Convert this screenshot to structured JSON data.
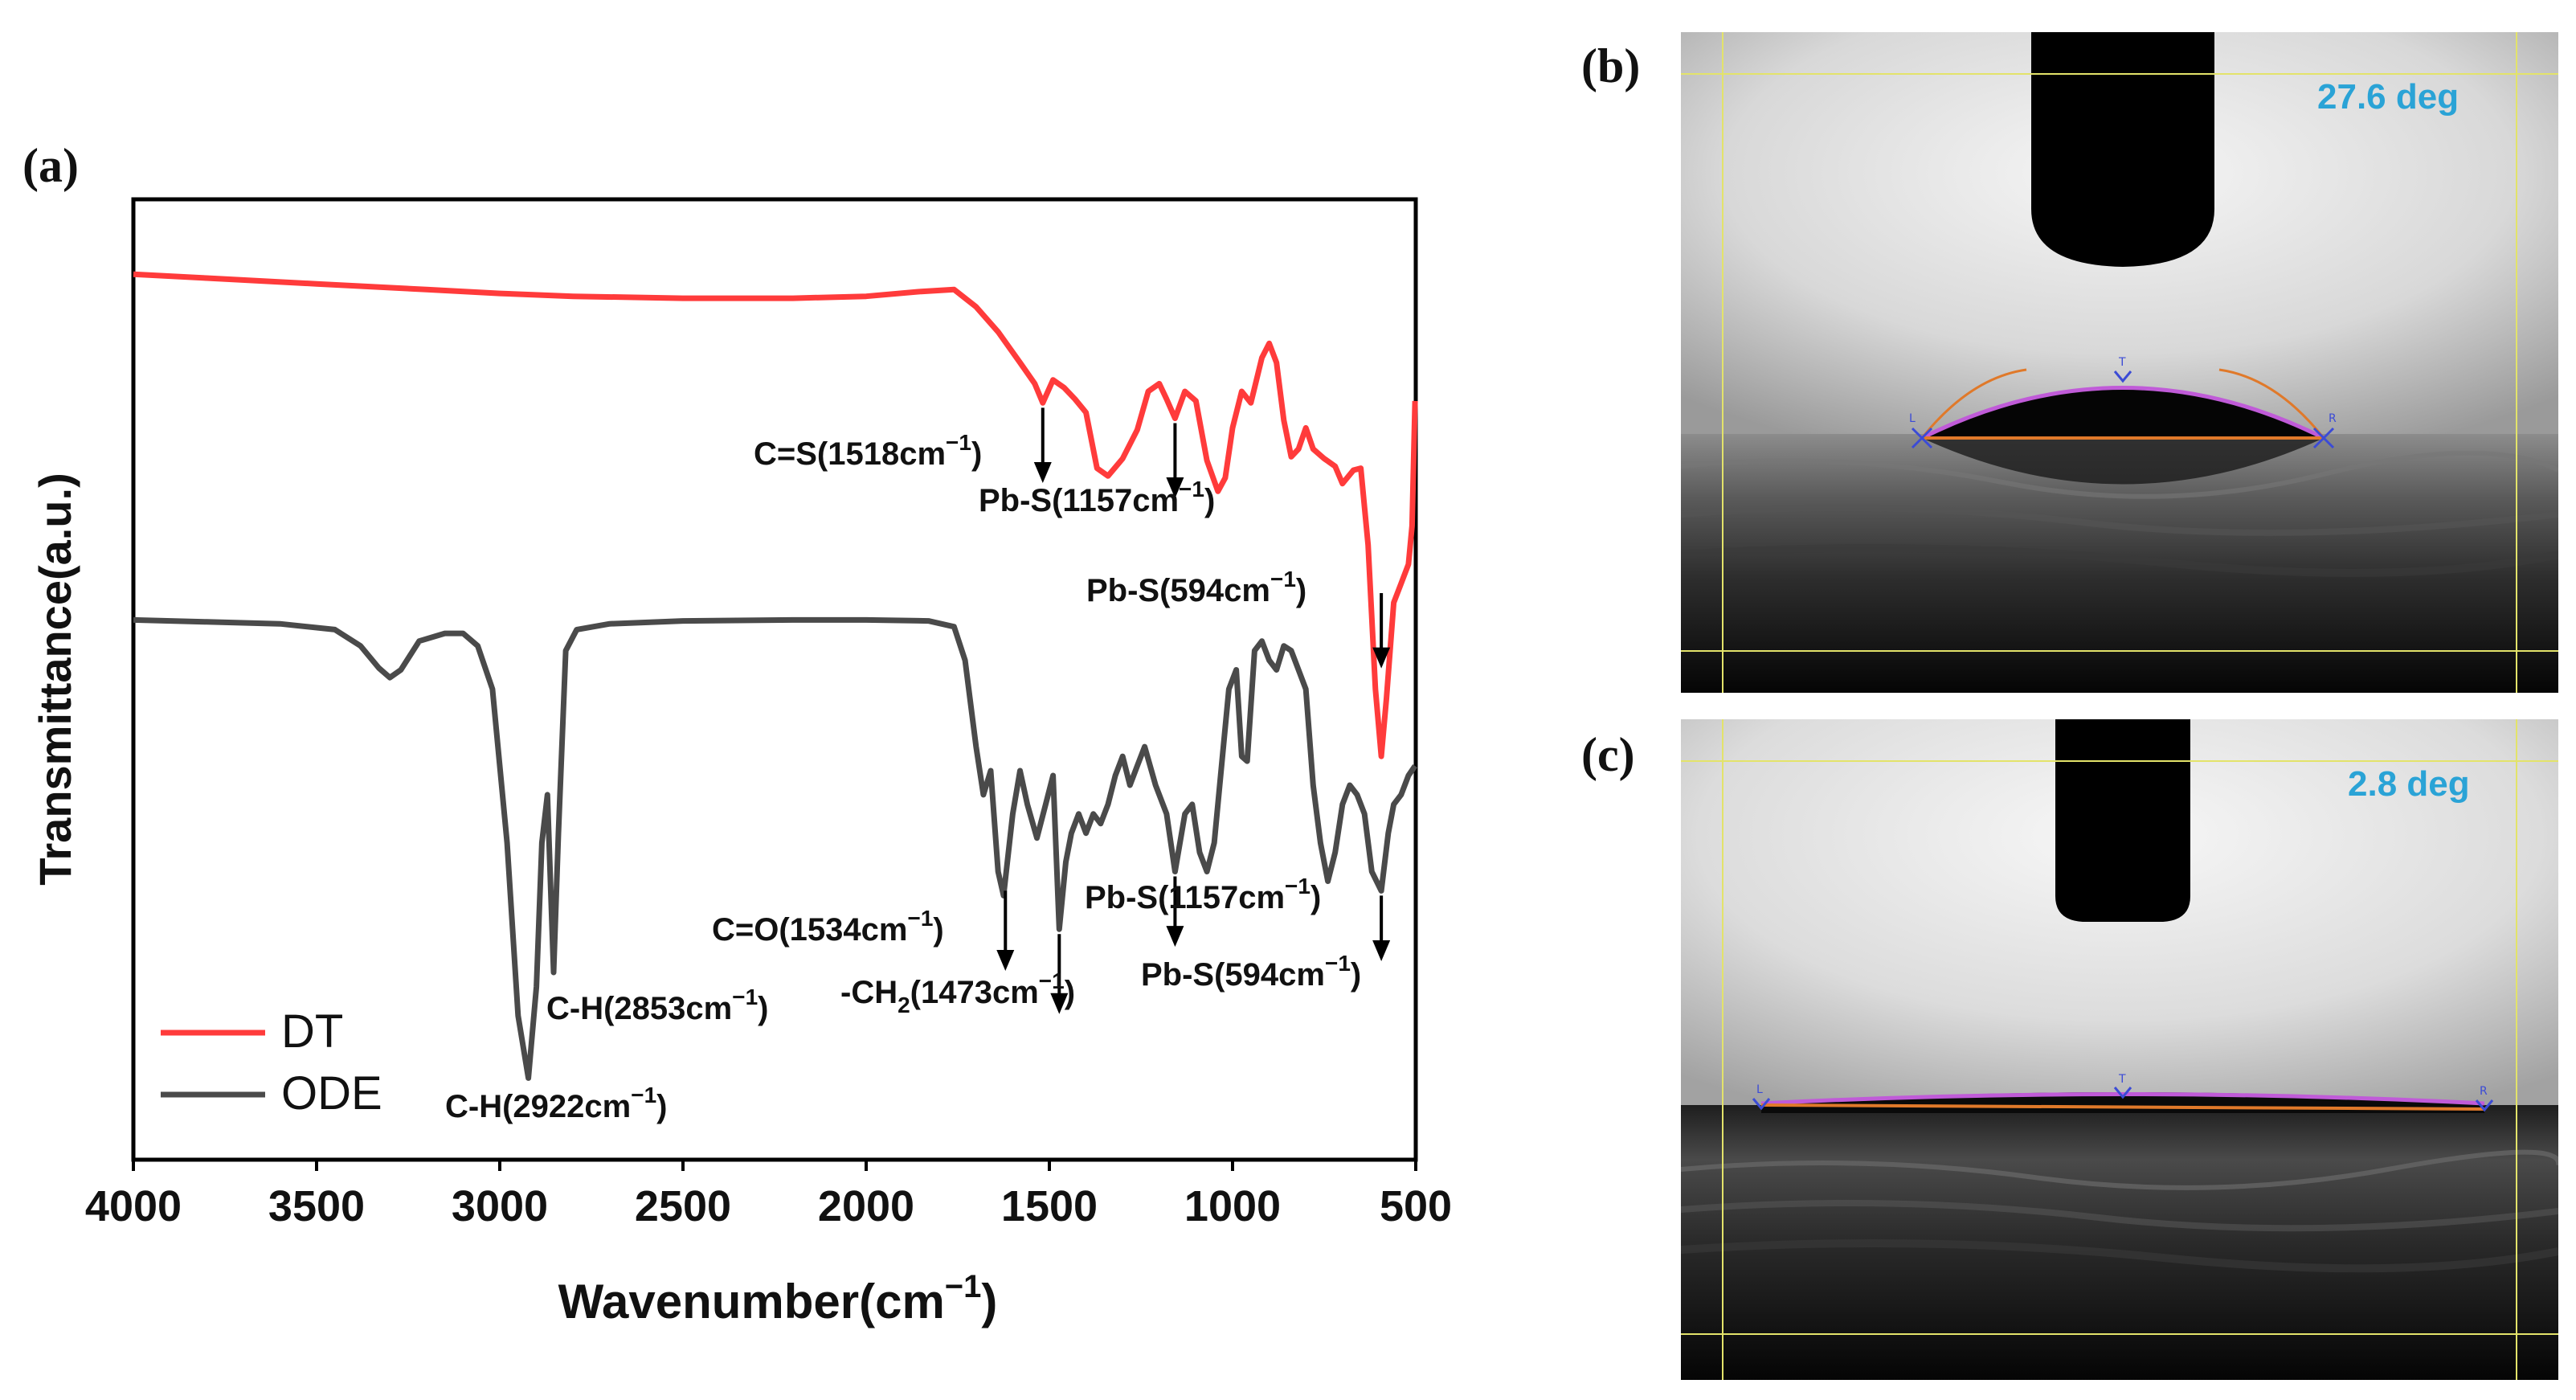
{
  "panels": {
    "a": "(a)",
    "b": "(b)",
    "c": "(c)"
  },
  "chart_data": {
    "type": "line",
    "xlabel": "Wavenumber(cm",
    "xlabel_sup": "−1",
    "xlabel_close": ")",
    "ylabel": "Transmittance(a.u.)",
    "xlim": [
      4000,
      500
    ],
    "ylim": [
      0,
      1
    ],
    "xticks": [
      "4000",
      "3500",
      "3000",
      "2500",
      "2000",
      "1500",
      "1000",
      "500"
    ],
    "xtick_values": [
      4000,
      3500,
      3000,
      2500,
      2000,
      1500,
      1000,
      500
    ],
    "legend": [
      {
        "name": "DT",
        "color": "#ff3b3b"
      },
      {
        "name": "ODE",
        "color": "#4a4a4a"
      }
    ],
    "series": [
      {
        "name": "DT",
        "color": "#ff3b3b",
        "points": [
          [
            4000,
            0.922
          ],
          [
            3800,
            0.918
          ],
          [
            3500,
            0.912
          ],
          [
            3200,
            0.906
          ],
          [
            3000,
            0.902
          ],
          [
            2800,
            0.899
          ],
          [
            2500,
            0.897
          ],
          [
            2200,
            0.897
          ],
          [
            2000,
            0.899
          ],
          [
            1850,
            0.904
          ],
          [
            1760,
            0.906
          ],
          [
            1700,
            0.888
          ],
          [
            1640,
            0.862
          ],
          [
            1580,
            0.83
          ],
          [
            1540,
            0.808
          ],
          [
            1518,
            0.788
          ],
          [
            1490,
            0.812
          ],
          [
            1460,
            0.804
          ],
          [
            1430,
            0.792
          ],
          [
            1400,
            0.778
          ],
          [
            1370,
            0.72
          ],
          [
            1340,
            0.712
          ],
          [
            1300,
            0.73
          ],
          [
            1260,
            0.76
          ],
          [
            1230,
            0.8
          ],
          [
            1200,
            0.808
          ],
          [
            1180,
            0.792
          ],
          [
            1157,
            0.772
          ],
          [
            1130,
            0.8
          ],
          [
            1100,
            0.79
          ],
          [
            1070,
            0.728
          ],
          [
            1040,
            0.696
          ],
          [
            1020,
            0.71
          ],
          [
            1000,
            0.762
          ],
          [
            975,
            0.8
          ],
          [
            950,
            0.788
          ],
          [
            920,
            0.835
          ],
          [
            900,
            0.85
          ],
          [
            880,
            0.83
          ],
          [
            860,
            0.77
          ],
          [
            840,
            0.732
          ],
          [
            820,
            0.74
          ],
          [
            800,
            0.762
          ],
          [
            780,
            0.74
          ],
          [
            750,
            0.73
          ],
          [
            720,
            0.722
          ],
          [
            700,
            0.704
          ],
          [
            670,
            0.718
          ],
          [
            650,
            0.72
          ],
          [
            630,
            0.64
          ],
          [
            610,
            0.49
          ],
          [
            594,
            0.42
          ],
          [
            580,
            0.48
          ],
          [
            560,
            0.58
          ],
          [
            540,
            0.6
          ],
          [
            520,
            0.62
          ],
          [
            510,
            0.66
          ],
          [
            502,
            0.79
          ]
        ]
      },
      {
        "name": "ODE",
        "color": "#4a4a4a",
        "points": [
          [
            4000,
            0.562
          ],
          [
            3800,
            0.56
          ],
          [
            3600,
            0.558
          ],
          [
            3450,
            0.552
          ],
          [
            3380,
            0.535
          ],
          [
            3330,
            0.512
          ],
          [
            3300,
            0.502
          ],
          [
            3270,
            0.51
          ],
          [
            3220,
            0.54
          ],
          [
            3150,
            0.548
          ],
          [
            3100,
            0.548
          ],
          [
            3060,
            0.535
          ],
          [
            3020,
            0.49
          ],
          [
            2980,
            0.33
          ],
          [
            2950,
            0.15
          ],
          [
            2922,
            0.085
          ],
          [
            2900,
            0.18
          ],
          [
            2885,
            0.33
          ],
          [
            2870,
            0.38
          ],
          [
            2853,
            0.195
          ],
          [
            2840,
            0.34
          ],
          [
            2820,
            0.53
          ],
          [
            2790,
            0.552
          ],
          [
            2700,
            0.558
          ],
          [
            2500,
            0.561
          ],
          [
            2200,
            0.562
          ],
          [
            2000,
            0.562
          ],
          [
            1830,
            0.561
          ],
          [
            1760,
            0.555
          ],
          [
            1730,
            0.52
          ],
          [
            1700,
            0.43
          ],
          [
            1680,
            0.38
          ],
          [
            1660,
            0.405
          ],
          [
            1640,
            0.3
          ],
          [
            1625,
            0.275
          ],
          [
            1600,
            0.36
          ],
          [
            1580,
            0.405
          ],
          [
            1560,
            0.37
          ],
          [
            1534,
            0.335
          ],
          [
            1510,
            0.37
          ],
          [
            1490,
            0.4
          ],
          [
            1473,
            0.24
          ],
          [
            1455,
            0.31
          ],
          [
            1440,
            0.34
          ],
          [
            1420,
            0.36
          ],
          [
            1400,
            0.34
          ],
          [
            1380,
            0.36
          ],
          [
            1360,
            0.35
          ],
          [
            1340,
            0.37
          ],
          [
            1320,
            0.4
          ],
          [
            1300,
            0.42
          ],
          [
            1280,
            0.39
          ],
          [
            1260,
            0.41
          ],
          [
            1240,
            0.43
          ],
          [
            1210,
            0.39
          ],
          [
            1180,
            0.36
          ],
          [
            1157,
            0.3
          ],
          [
            1130,
            0.36
          ],
          [
            1110,
            0.37
          ],
          [
            1090,
            0.32
          ],
          [
            1070,
            0.3
          ],
          [
            1050,
            0.33
          ],
          [
            1030,
            0.41
          ],
          [
            1010,
            0.49
          ],
          [
            990,
            0.51
          ],
          [
            975,
            0.42
          ],
          [
            960,
            0.415
          ],
          [
            940,
            0.53
          ],
          [
            920,
            0.54
          ],
          [
            900,
            0.52
          ],
          [
            880,
            0.51
          ],
          [
            860,
            0.535
          ],
          [
            840,
            0.53
          ],
          [
            820,
            0.51
          ],
          [
            800,
            0.49
          ],
          [
            780,
            0.39
          ],
          [
            760,
            0.33
          ],
          [
            740,
            0.29
          ],
          [
            720,
            0.32
          ],
          [
            700,
            0.37
          ],
          [
            680,
            0.39
          ],
          [
            660,
            0.38
          ],
          [
            640,
            0.36
          ],
          [
            620,
            0.3
          ],
          [
            594,
            0.28
          ],
          [
            575,
            0.34
          ],
          [
            560,
            0.37
          ],
          [
            540,
            0.38
          ],
          [
            520,
            0.4
          ],
          [
            502,
            0.41
          ]
        ]
      }
    ],
    "annotations": [
      {
        "label": "C=S(1518cm",
        "x": 1518,
        "y_from": 0.788,
        "y_to": 0.708
      },
      {
        "label": "Pb-S(1157cm",
        "x": 1157,
        "y_from": 0.772,
        "y_to": 0.692
      },
      {
        "label": "Pb-S(594cm",
        "x": 594,
        "y_from": 0.595,
        "y_to": 0.515
      },
      {
        "label": "C=O(1534cm",
        "x": 1620,
        "y_from": 0.285,
        "y_to": 0.2
      },
      {
        "label": "-CH",
        "x": 1473,
        "y_from": 0.24,
        "y_to": 0.155
      },
      {
        "label": "Pb-S(1157cm",
        "x": 1157,
        "y_from": 0.3,
        "y_to": 0.225
      },
      {
        "label": "Pb-S(594cm",
        "x": 594,
        "y_from": 0.28,
        "y_to": 0.21
      },
      {
        "label": "C-H(2853cm",
        "x": 2853,
        "y_from": 0.0,
        "y_to": 0.0
      },
      {
        "label": "C-H(2922cm",
        "x": 2922,
        "y_from": 0.0,
        "y_to": 0.0
      }
    ],
    "annotation_sup": "−1",
    "annotation_close": ")",
    "annotation_sub2": "2",
    "annotation_ch2_rest": "(1473cm"
  },
  "photos": {
    "b": {
      "contact_angle": "27.6 deg",
      "markers": [
        "L",
        "T",
        "R"
      ]
    },
    "c": {
      "contact_angle": "2.8 deg",
      "markers": [
        "L",
        "T",
        "R"
      ]
    }
  },
  "colors": {
    "fit_line": "#c05bd8",
    "baseline": "#e0792a",
    "marker": "#3b4bd6",
    "guide": "#e3e36a"
  }
}
